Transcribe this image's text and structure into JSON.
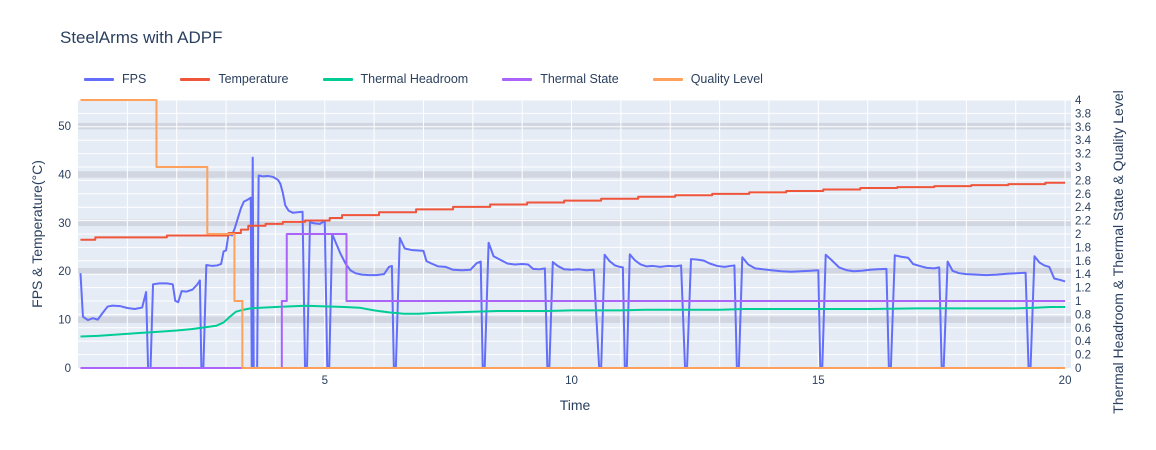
{
  "chart_data": {
    "type": "line",
    "title": "SteelArms with ADPF",
    "xlabel": "Time",
    "x_range": [
      0,
      20.12
    ],
    "x_ticks": [
      5,
      10,
      15,
      20
    ],
    "x_grid_step": 1,
    "grid": true,
    "legend_position": "top-left-horizontal",
    "plot_bg_color": "#e5ecf6",
    "grid_color": "#ffffff",
    "band_color": "#d2d6e0",
    "text_color": "#2a3f5f",
    "left_axis": {
      "label": "FPS & Temperature(°C)",
      "range": [
        0,
        55.4
      ],
      "ticks": [
        0,
        10,
        20,
        30,
        40,
        50
      ],
      "band_ticks": [
        10,
        20,
        30,
        40,
        50
      ]
    },
    "right_axis": {
      "label": "Thermal Headroom & Thermal State & Quality Level",
      "range": [
        0,
        4
      ],
      "ticks": [
        0,
        0.2,
        0.4,
        0.6,
        0.8,
        1,
        1.2,
        1.4,
        1.6,
        1.8,
        2,
        2.2,
        2.4,
        2.6,
        2.8,
        3,
        3.2,
        3.4,
        3.6,
        3.8,
        4
      ]
    },
    "series": [
      {
        "name": "FPS",
        "color": "#636efa",
        "axis": "left",
        "mode": "linear",
        "points": [
          [
            0.05,
            19.6
          ],
          [
            0.1,
            10.6
          ],
          [
            0.2,
            9.9
          ],
          [
            0.3,
            10.3
          ],
          [
            0.4,
            10.0
          ],
          [
            0.5,
            11.4
          ],
          [
            0.6,
            12.7
          ],
          [
            0.7,
            12.9
          ],
          [
            0.85,
            12.8
          ],
          [
            1.0,
            12.4
          ],
          [
            1.15,
            12.2
          ],
          [
            1.3,
            12.5
          ],
          [
            1.38,
            15.7
          ],
          [
            1.42,
            0
          ],
          [
            1.47,
            0
          ],
          [
            1.52,
            17.3
          ],
          [
            1.65,
            17.5
          ],
          [
            1.8,
            17.5
          ],
          [
            1.92,
            17.3
          ],
          [
            1.97,
            13.9
          ],
          [
            2.03,
            13.6
          ],
          [
            2.1,
            15.9
          ],
          [
            2.2,
            15.8
          ],
          [
            2.32,
            16.2
          ],
          [
            2.42,
            17.3
          ],
          [
            2.47,
            18.1
          ],
          [
            2.5,
            0
          ],
          [
            2.54,
            0
          ],
          [
            2.6,
            21.3
          ],
          [
            2.72,
            21.1
          ],
          [
            2.82,
            21.2
          ],
          [
            2.9,
            21.5
          ],
          [
            2.95,
            24.1
          ],
          [
            3.0,
            24.3
          ],
          [
            3.05,
            27.7
          ],
          [
            3.12,
            27.4
          ],
          [
            3.18,
            29.0
          ],
          [
            3.24,
            31.0
          ],
          [
            3.3,
            33.0
          ],
          [
            3.36,
            34.4
          ],
          [
            3.44,
            34.8
          ],
          [
            3.5,
            35.2
          ],
          [
            3.52,
            0
          ],
          [
            3.54,
            43.5
          ],
          [
            3.56,
            0
          ],
          [
            3.6,
            0
          ],
          [
            3.63,
            0
          ],
          [
            3.66,
            39.8
          ],
          [
            3.75,
            39.6
          ],
          [
            3.85,
            39.7
          ],
          [
            3.95,
            39.5
          ],
          [
            4.05,
            38.9
          ],
          [
            4.1,
            38.1
          ],
          [
            4.15,
            36.2
          ],
          [
            4.2,
            33.6
          ],
          [
            4.27,
            32.5
          ],
          [
            4.35,
            32.1
          ],
          [
            4.45,
            32.2
          ],
          [
            4.55,
            32.3
          ],
          [
            4.6,
            0
          ],
          [
            4.64,
            0
          ],
          [
            4.7,
            30.1
          ],
          [
            4.8,
            29.9
          ],
          [
            4.9,
            29.8
          ],
          [
            5.0,
            30.4
          ],
          [
            5.05,
            0
          ],
          [
            5.09,
            0
          ],
          [
            5.15,
            27.7
          ],
          [
            5.22,
            26.0
          ],
          [
            5.32,
            23.6
          ],
          [
            5.42,
            21.6
          ],
          [
            5.52,
            20.2
          ],
          [
            5.62,
            19.6
          ],
          [
            5.75,
            19.3
          ],
          [
            5.9,
            19.2
          ],
          [
            6.05,
            19.2
          ],
          [
            6.2,
            19.4
          ],
          [
            6.3,
            20.9
          ],
          [
            6.36,
            21.1
          ],
          [
            6.4,
            0
          ],
          [
            6.44,
            0
          ],
          [
            6.52,
            26.9
          ],
          [
            6.62,
            24.7
          ],
          [
            6.75,
            24.4
          ],
          [
            6.9,
            24.3
          ],
          [
            7.0,
            24.2
          ],
          [
            7.06,
            22.1
          ],
          [
            7.16,
            21.6
          ],
          [
            7.3,
            21.0
          ],
          [
            7.45,
            20.9
          ],
          [
            7.6,
            20.3
          ],
          [
            7.78,
            20.2
          ],
          [
            7.95,
            20.3
          ],
          [
            8.08,
            21.7
          ],
          [
            8.16,
            22.0
          ],
          [
            8.2,
            0
          ],
          [
            8.24,
            0
          ],
          [
            8.32,
            25.9
          ],
          [
            8.42,
            23.1
          ],
          [
            8.55,
            22.4
          ],
          [
            8.7,
            21.6
          ],
          [
            8.85,
            21.4
          ],
          [
            9.0,
            21.5
          ],
          [
            9.12,
            21.4
          ],
          [
            9.22,
            20.5
          ],
          [
            9.35,
            20.4
          ],
          [
            9.46,
            20.6
          ],
          [
            9.51,
            0
          ],
          [
            9.55,
            0
          ],
          [
            9.62,
            21.9
          ],
          [
            9.72,
            21.1
          ],
          [
            9.85,
            20.4
          ],
          [
            10.0,
            20.3
          ],
          [
            10.15,
            20.4
          ],
          [
            10.3,
            20.2
          ],
          [
            10.45,
            20.3
          ],
          [
            10.56,
            0
          ],
          [
            10.6,
            0
          ],
          [
            10.67,
            23.4
          ],
          [
            10.77,
            22.1
          ],
          [
            10.88,
            21.2
          ],
          [
            10.98,
            20.9
          ],
          [
            11.04,
            20.8
          ],
          [
            11.08,
            0
          ],
          [
            11.12,
            0
          ],
          [
            11.18,
            23.5
          ],
          [
            11.28,
            22.3
          ],
          [
            11.4,
            21.4
          ],
          [
            11.52,
            21.0
          ],
          [
            11.65,
            21.1
          ],
          [
            11.8,
            20.9
          ],
          [
            11.95,
            21.1
          ],
          [
            12.1,
            21.0
          ],
          [
            12.22,
            21.2
          ],
          [
            12.3,
            0
          ],
          [
            12.34,
            0
          ],
          [
            12.42,
            22.5
          ],
          [
            12.55,
            22.4
          ],
          [
            12.68,
            22.2
          ],
          [
            12.8,
            21.6
          ],
          [
            12.95,
            21.1
          ],
          [
            13.1,
            20.9
          ],
          [
            13.22,
            21.1
          ],
          [
            13.3,
            21.2
          ],
          [
            13.35,
            0
          ],
          [
            13.39,
            0
          ],
          [
            13.46,
            22.9
          ],
          [
            13.58,
            21.4
          ],
          [
            13.72,
            20.6
          ],
          [
            13.88,
            20.4
          ],
          [
            14.05,
            20.2
          ],
          [
            14.25,
            20.0
          ],
          [
            14.45,
            19.9
          ],
          [
            14.65,
            20.0
          ],
          [
            14.85,
            20.1
          ],
          [
            15.0,
            20.2
          ],
          [
            15.04,
            0
          ],
          [
            15.08,
            0
          ],
          [
            15.15,
            23.4
          ],
          [
            15.28,
            22.2
          ],
          [
            15.42,
            20.8
          ],
          [
            15.58,
            20.2
          ],
          [
            15.72,
            20.0
          ],
          [
            15.88,
            20.1
          ],
          [
            16.05,
            20.3
          ],
          [
            16.2,
            20.4
          ],
          [
            16.38,
            20.5
          ],
          [
            16.43,
            0
          ],
          [
            16.47,
            0
          ],
          [
            16.55,
            23.3
          ],
          [
            16.68,
            23.0
          ],
          [
            16.82,
            22.8
          ],
          [
            16.92,
            21.5
          ],
          [
            17.05,
            21.1
          ],
          [
            17.2,
            20.7
          ],
          [
            17.35,
            20.6
          ],
          [
            17.45,
            20.8
          ],
          [
            17.5,
            0
          ],
          [
            17.54,
            0
          ],
          [
            17.62,
            22.0
          ],
          [
            17.72,
            20.1
          ],
          [
            17.85,
            19.6
          ],
          [
            18.0,
            19.4
          ],
          [
            18.2,
            19.3
          ],
          [
            18.4,
            19.2
          ],
          [
            18.62,
            19.3
          ],
          [
            18.85,
            19.5
          ],
          [
            19.05,
            19.6
          ],
          [
            19.2,
            19.7
          ],
          [
            19.26,
            0
          ],
          [
            19.3,
            0
          ],
          [
            19.38,
            23.1
          ],
          [
            19.48,
            21.8
          ],
          [
            19.58,
            21.2
          ],
          [
            19.68,
            20.9
          ],
          [
            19.78,
            18.5
          ],
          [
            19.9,
            18.2
          ],
          [
            20.0,
            17.9
          ]
        ]
      },
      {
        "name": "Temperature",
        "color": "#ef553b",
        "axis": "left",
        "mode": "step",
        "points": [
          [
            0.05,
            26.5
          ],
          [
            0.35,
            27.0
          ],
          [
            1.8,
            27.4
          ],
          [
            3.05,
            27.9
          ],
          [
            3.3,
            28.6
          ],
          [
            3.45,
            29.4
          ],
          [
            3.8,
            29.8
          ],
          [
            4.15,
            30.2
          ],
          [
            4.6,
            30.5
          ],
          [
            5.1,
            31.0
          ],
          [
            5.35,
            31.6
          ],
          [
            6.1,
            32.2
          ],
          [
            6.85,
            32.8
          ],
          [
            7.6,
            33.3
          ],
          [
            8.35,
            33.8
          ],
          [
            9.1,
            34.2
          ],
          [
            9.85,
            34.6
          ],
          [
            10.6,
            35.0
          ],
          [
            11.35,
            35.4
          ],
          [
            12.1,
            35.7
          ],
          [
            12.85,
            36.0
          ],
          [
            13.6,
            36.3
          ],
          [
            14.35,
            36.6
          ],
          [
            15.1,
            36.9
          ],
          [
            15.85,
            37.2
          ],
          [
            16.6,
            37.4
          ],
          [
            17.35,
            37.6
          ],
          [
            18.1,
            37.8
          ],
          [
            18.85,
            38.0
          ],
          [
            19.6,
            38.3
          ],
          [
            20.0,
            38.3
          ]
        ]
      },
      {
        "name": "Thermal Headroom",
        "color": "#00cc96",
        "axis": "right",
        "mode": "linear",
        "points": [
          [
            0.05,
            0.47
          ],
          [
            0.4,
            0.48
          ],
          [
            0.8,
            0.5
          ],
          [
            1.2,
            0.52
          ],
          [
            1.6,
            0.54
          ],
          [
            2.0,
            0.56
          ],
          [
            2.3,
            0.58
          ],
          [
            2.6,
            0.61
          ],
          [
            2.8,
            0.63
          ],
          [
            2.95,
            0.68
          ],
          [
            3.1,
            0.78
          ],
          [
            3.2,
            0.84
          ],
          [
            3.35,
            0.87
          ],
          [
            3.5,
            0.89
          ],
          [
            3.7,
            0.9
          ],
          [
            4.0,
            0.91
          ],
          [
            4.3,
            0.92
          ],
          [
            4.6,
            0.93
          ],
          [
            5.0,
            0.92
          ],
          [
            5.4,
            0.91
          ],
          [
            5.7,
            0.9
          ],
          [
            6.0,
            0.86
          ],
          [
            6.3,
            0.83
          ],
          [
            6.6,
            0.81
          ],
          [
            6.9,
            0.81
          ],
          [
            7.2,
            0.82
          ],
          [
            7.6,
            0.83
          ],
          [
            8.0,
            0.84
          ],
          [
            8.5,
            0.85
          ],
          [
            9.0,
            0.85
          ],
          [
            9.5,
            0.85
          ],
          [
            10.0,
            0.86
          ],
          [
            10.5,
            0.86
          ],
          [
            11.0,
            0.86
          ],
          [
            11.5,
            0.87
          ],
          [
            12.0,
            0.87
          ],
          [
            12.5,
            0.87
          ],
          [
            13.0,
            0.87
          ],
          [
            13.5,
            0.88
          ],
          [
            14.0,
            0.88
          ],
          [
            15.0,
            0.88
          ],
          [
            16.0,
            0.88
          ],
          [
            17.0,
            0.89
          ],
          [
            18.0,
            0.89
          ],
          [
            19.0,
            0.89
          ],
          [
            19.4,
            0.9
          ],
          [
            19.7,
            0.91
          ],
          [
            20.0,
            0.91
          ]
        ]
      },
      {
        "name": "Thermal State",
        "color": "#ab63fa",
        "axis": "right",
        "mode": "step",
        "points": [
          [
            0.05,
            0
          ],
          [
            4.13,
            1
          ],
          [
            4.23,
            2
          ],
          [
            5.44,
            1
          ],
          [
            20.0,
            1
          ]
        ]
      },
      {
        "name": "Quality Level",
        "color": "#ffa15a",
        "axis": "right",
        "mode": "step",
        "points": [
          [
            0.05,
            4
          ],
          [
            1.59,
            3
          ],
          [
            2.62,
            2
          ],
          [
            3.17,
            1
          ],
          [
            3.33,
            0
          ],
          [
            20.0,
            0
          ]
        ]
      }
    ]
  }
}
